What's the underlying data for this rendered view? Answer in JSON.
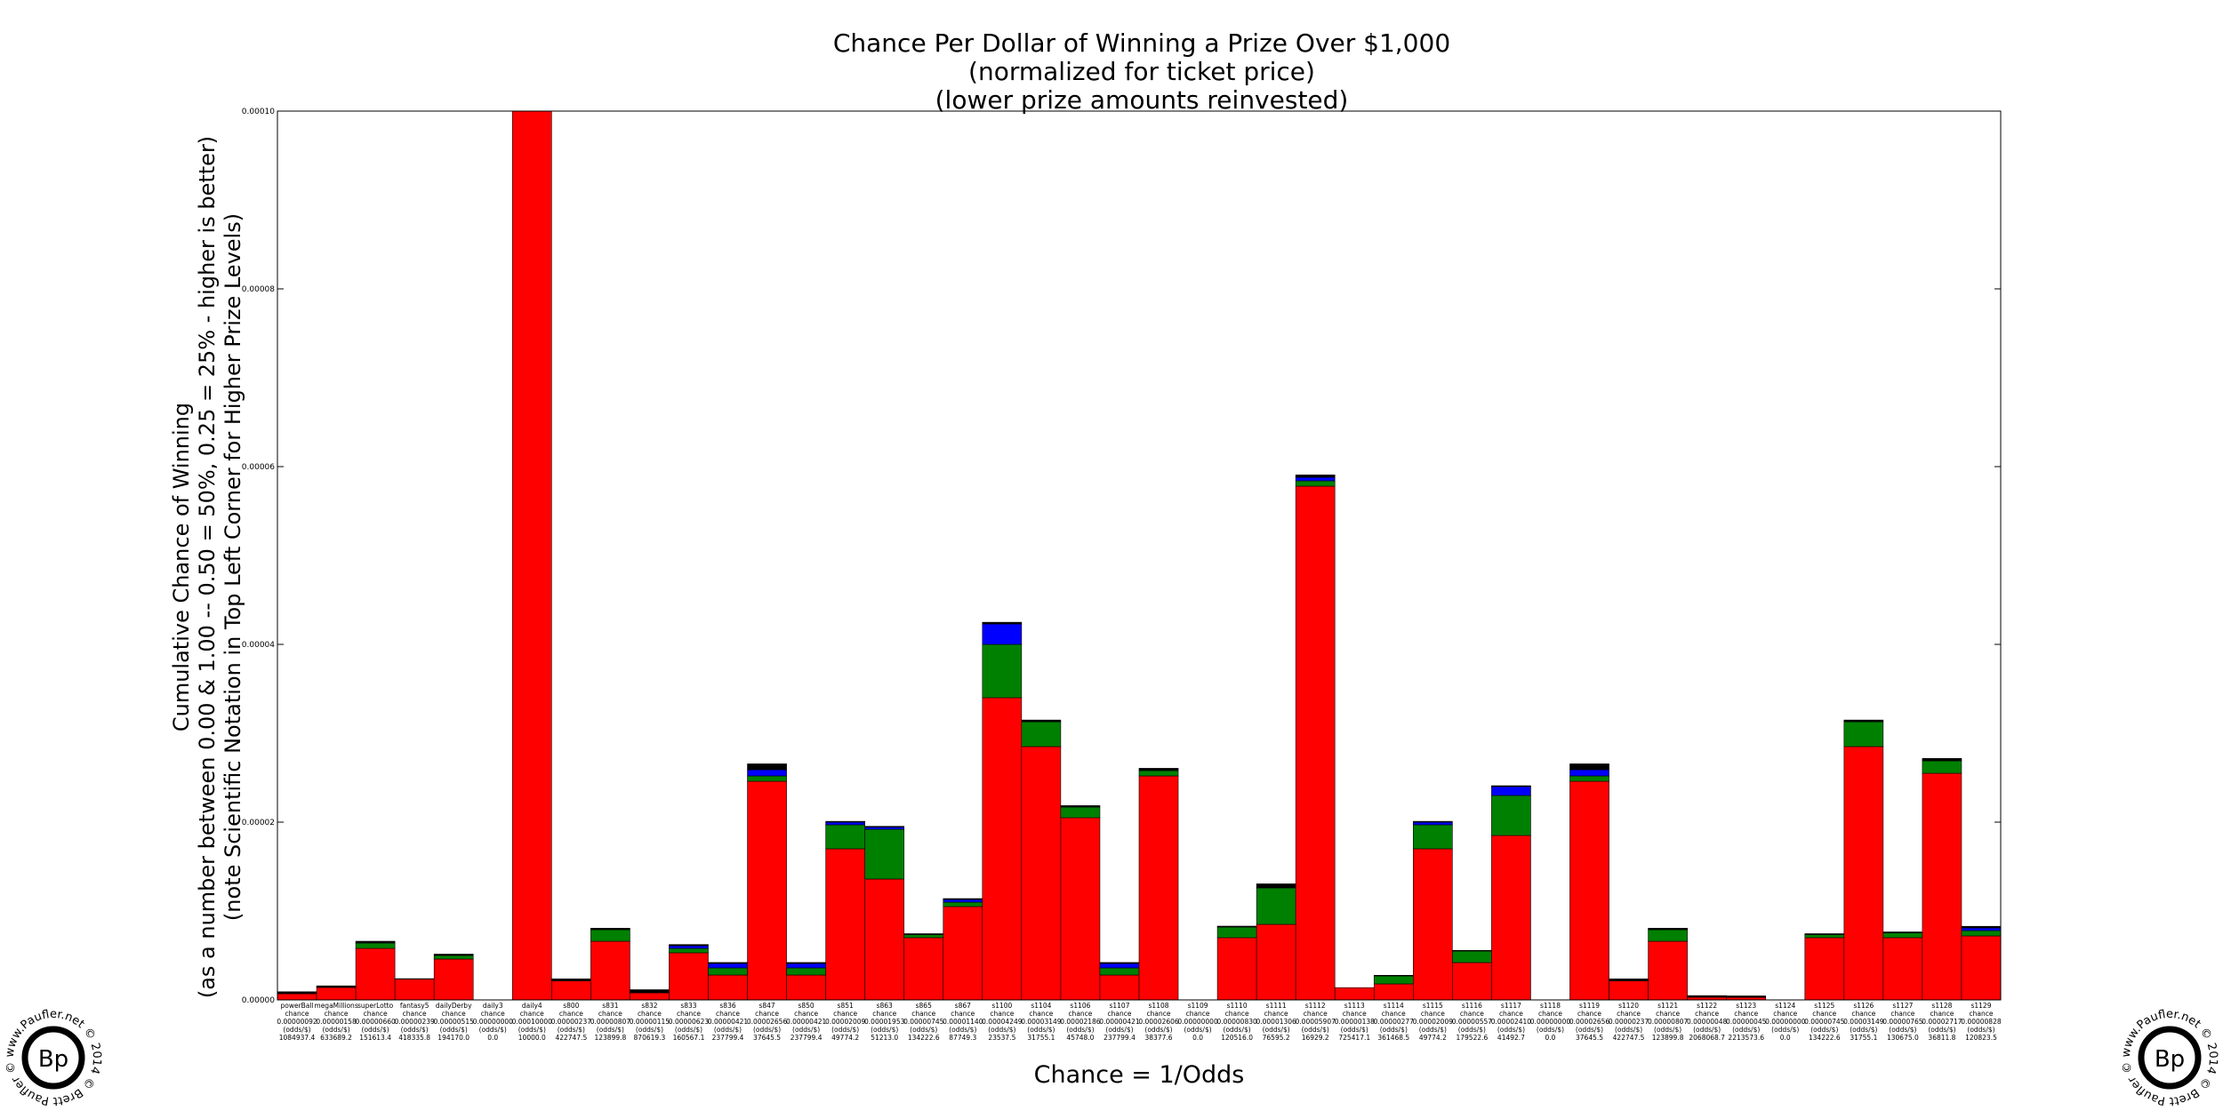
{
  "chart_data": {
    "type": "bar",
    "title_lines": [
      "Chance Per Dollar of Winning a Prize Over $1,000",
      "(normalized for ticket price)",
      "(lower prize amounts reinvested)"
    ],
    "ylabel_lines": [
      "Cumulative Chance of Winning",
      "(as a number between 0.00 & 1.00 -- 0.50 = 50%, 0.25 = 25% - higher is better)",
      "(note Scientific Notation in Top Left Corner for Higher Prize Levels)"
    ],
    "xlabel": "Chance = 1/Odds",
    "ylim": [
      0,
      0.0001
    ],
    "yticks": [
      "0.00000",
      "0.00002",
      "0.00004",
      "0.00006",
      "0.00008",
      "0.00010"
    ],
    "stack_colors": [
      "#ff0000",
      "#008000",
      "#0000ff",
      "#000000"
    ],
    "games": [
      {
        "name": "powerBall",
        "chance": "0.00000092",
        "odds": "1084937.4",
        "red": 7e-07,
        "green": 0,
        "blue": 0,
        "black": 2.2e-07
      },
      {
        "name": "megaMillions",
        "chance": "0.00000158",
        "odds": "633689.2",
        "red": 1.4e-06,
        "green": 0,
        "blue": 0,
        "black": 1.8e-07
      },
      {
        "name": "superLotto",
        "chance": "0.00000660",
        "odds": "151613.4",
        "red": 5.8e-06,
        "green": 6e-07,
        "blue": 0,
        "black": 2e-07
      },
      {
        "name": "fantasy5",
        "chance": "0.00000239",
        "odds": "418335.8",
        "red": 2.35e-06,
        "green": 0,
        "blue": 0,
        "black": 4e-08
      },
      {
        "name": "dailyDerby",
        "chance": "0.00000515",
        "odds": "194170.0",
        "red": 4.6e-06,
        "green": 4e-07,
        "blue": 0,
        "black": 1.5e-07
      },
      {
        "name": "daily3",
        "chance": "0.00000000",
        "odds": "0.0",
        "red": 0,
        "green": 0,
        "blue": 0,
        "black": 0
      },
      {
        "name": "daily4",
        "chance": "0.00010000",
        "odds": "10000.0",
        "red": 0.0001,
        "green": 0,
        "blue": 0,
        "black": 0
      },
      {
        "name": "s800",
        "chance": "0.00000237",
        "odds": "422747.5",
        "red": 2.15e-06,
        "green": 0,
        "blue": 0,
        "black": 2.2e-07
      },
      {
        "name": "s831",
        "chance": "0.00000807",
        "odds": "123899.8",
        "red": 6.6e-06,
        "green": 1.3e-06,
        "blue": 0,
        "black": 1.7e-07
      },
      {
        "name": "s832",
        "chance": "0.00000115",
        "odds": "870619.3",
        "red": 8e-07,
        "green": 0,
        "blue": 0,
        "black": 3.5e-07
      },
      {
        "name": "s833",
        "chance": "0.00000623",
        "odds": "160567.1",
        "red": 5.3e-06,
        "green": 5e-07,
        "blue": 3e-07,
        "black": 1.3e-07
      },
      {
        "name": "s836",
        "chance": "0.00000421",
        "odds": "237799.4",
        "red": 2.8e-06,
        "green": 8e-07,
        "blue": 5e-07,
        "black": 1.1e-07
      },
      {
        "name": "s847",
        "chance": "0.00002656",
        "odds": "37645.5",
        "red": 2.46e-05,
        "green": 6e-07,
        "blue": 7e-07,
        "black": 6.6e-07
      },
      {
        "name": "s850",
        "chance": "0.00000421",
        "odds": "237799.4",
        "red": 2.8e-06,
        "green": 8e-07,
        "blue": 5e-07,
        "black": 1.1e-07
      },
      {
        "name": "s851",
        "chance": "0.00002009",
        "odds": "49774.2",
        "red": 1.7e-05,
        "green": 2.7e-06,
        "blue": 3e-07,
        "black": 9e-08
      },
      {
        "name": "s863",
        "chance": "0.00001953",
        "odds": "51213.0",
        "red": 1.36e-05,
        "green": 5.6e-06,
        "blue": 2.5e-07,
        "black": 8e-08
      },
      {
        "name": "s865",
        "chance": "0.00000745",
        "odds": "134222.6",
        "red": 7e-06,
        "green": 3.5e-07,
        "blue": 0,
        "black": 1e-07
      },
      {
        "name": "s867",
        "chance": "0.00001140",
        "odds": "87749.3",
        "red": 1.05e-05,
        "green": 5e-07,
        "blue": 3e-07,
        "black": 1e-07
      },
      {
        "name": "s1100",
        "chance": "0.00004249",
        "odds": "23537.5",
        "red": 3.4e-05,
        "green": 6e-06,
        "blue": 2.3e-06,
        "black": 1.9e-07
      },
      {
        "name": "s1104",
        "chance": "0.00003149",
        "odds": "31755.1",
        "red": 2.85e-05,
        "green": 2.8e-06,
        "blue": 0,
        "black": 1.9e-07
      },
      {
        "name": "s1106",
        "chance": "0.00002186",
        "odds": "45748.0",
        "red": 2.05e-05,
        "green": 1.2e-06,
        "blue": 0,
        "black": 1.6e-07
      },
      {
        "name": "s1107",
        "chance": "0.00000421",
        "odds": "237799.4",
        "red": 2.8e-06,
        "green": 8e-07,
        "blue": 5e-07,
        "black": 1.1e-07
      },
      {
        "name": "s1108",
        "chance": "0.00002606",
        "odds": "38377.6",
        "red": 2.52e-05,
        "green": 6e-07,
        "blue": 0,
        "black": 2.6e-07
      },
      {
        "name": "s1109",
        "chance": "0.00000000",
        "odds": "0.0",
        "red": 0,
        "green": 0,
        "blue": 0,
        "black": 0
      },
      {
        "name": "s1110",
        "chance": "0.00000830",
        "odds": "120516.0",
        "red": 7e-06,
        "green": 1.2e-06,
        "blue": 0,
        "black": 1e-07
      },
      {
        "name": "s1111",
        "chance": "0.00001306",
        "odds": "76595.2",
        "red": 8.5e-06,
        "green": 4.1e-06,
        "blue": 0,
        "black": 4.6e-07
      },
      {
        "name": "s1112",
        "chance": "0.00005907",
        "odds": "16929.2",
        "red": 5.78e-05,
        "green": 6e-07,
        "blue": 4e-07,
        "black": 2.7e-07
      },
      {
        "name": "s1113",
        "chance": "0.00000138",
        "odds": "725417.1",
        "red": 1.38e-06,
        "green": 0,
        "blue": 0,
        "black": 0
      },
      {
        "name": "s1114",
        "chance": "0.00000277",
        "odds": "361468.5",
        "red": 1.8e-06,
        "green": 9e-07,
        "blue": 0,
        "black": 7e-08
      },
      {
        "name": "s1115",
        "chance": "0.00002009",
        "odds": "49774.2",
        "red": 1.7e-05,
        "green": 2.7e-06,
        "blue": 3e-07,
        "black": 9e-08
      },
      {
        "name": "s1116",
        "chance": "0.00000557",
        "odds": "179522.6",
        "red": 4.2e-06,
        "green": 1.3e-06,
        "blue": 0,
        "black": 7e-08
      },
      {
        "name": "s1117",
        "chance": "0.00002410",
        "odds": "41492.7",
        "red": 1.85e-05,
        "green": 4.5e-06,
        "blue": 1e-06,
        "black": 1e-07
      },
      {
        "name": "s1118",
        "chance": "0.00000000",
        "odds": "0.0",
        "red": 0,
        "green": 0,
        "blue": 0,
        "black": 0
      },
      {
        "name": "s1119",
        "chance": "0.00002656",
        "odds": "37645.5",
        "red": 2.46e-05,
        "green": 6e-07,
        "blue": 7e-07,
        "black": 6.6e-07
      },
      {
        "name": "s1120",
        "chance": "0.00000237",
        "odds": "422747.5",
        "red": 2.15e-06,
        "green": 0,
        "blue": 0,
        "black": 2.2e-07
      },
      {
        "name": "s1121",
        "chance": "0.00000807",
        "odds": "123899.8",
        "red": 6.6e-06,
        "green": 1.3e-06,
        "blue": 0,
        "black": 1.7e-07
      },
      {
        "name": "s1122",
        "chance": "0.00000048",
        "odds": "2068068.7",
        "red": 3e-07,
        "green": 0,
        "blue": 0,
        "black": 1.8e-07
      },
      {
        "name": "s1123",
        "chance": "0.00000045",
        "odds": "2213573.6",
        "red": 2.8e-07,
        "green": 0,
        "blue": 0,
        "black": 1.7e-07
      },
      {
        "name": "s1124",
        "chance": "0.00000000",
        "odds": "0.0",
        "red": 0,
        "green": 0,
        "blue": 0,
        "black": 0
      },
      {
        "name": "s1125",
        "chance": "0.00000745",
        "odds": "134222.6",
        "red": 7e-06,
        "green": 3.5e-07,
        "blue": 0,
        "black": 1e-07
      },
      {
        "name": "s1126",
        "chance": "0.00003149",
        "odds": "31755.1",
        "red": 2.85e-05,
        "green": 2.8e-06,
        "blue": 0,
        "black": 1.9e-07
      },
      {
        "name": "s1127",
        "chance": "0.00000765",
        "odds": "130675.0",
        "red": 7e-06,
        "green": 5.5e-07,
        "blue": 0,
        "black": 1e-07
      },
      {
        "name": "s1128",
        "chance": "0.00002717",
        "odds": "36811.8",
        "red": 2.55e-05,
        "green": 1.4e-06,
        "blue": 0,
        "black": 2.7e-07
      },
      {
        "name": "s1129",
        "chance": "0.00000828",
        "odds": "120823.5",
        "red": 7.2e-06,
        "green": 6e-07,
        "blue": 3e-07,
        "black": 1.8e-07
      }
    ],
    "tick_line_labels": [
      "chance",
      "(odds/$)"
    ]
  },
  "watermark": {
    "ring_text": "www.Paufler.net © 2014 © Brett Paufler ©",
    "logo_text": "Bp"
  }
}
